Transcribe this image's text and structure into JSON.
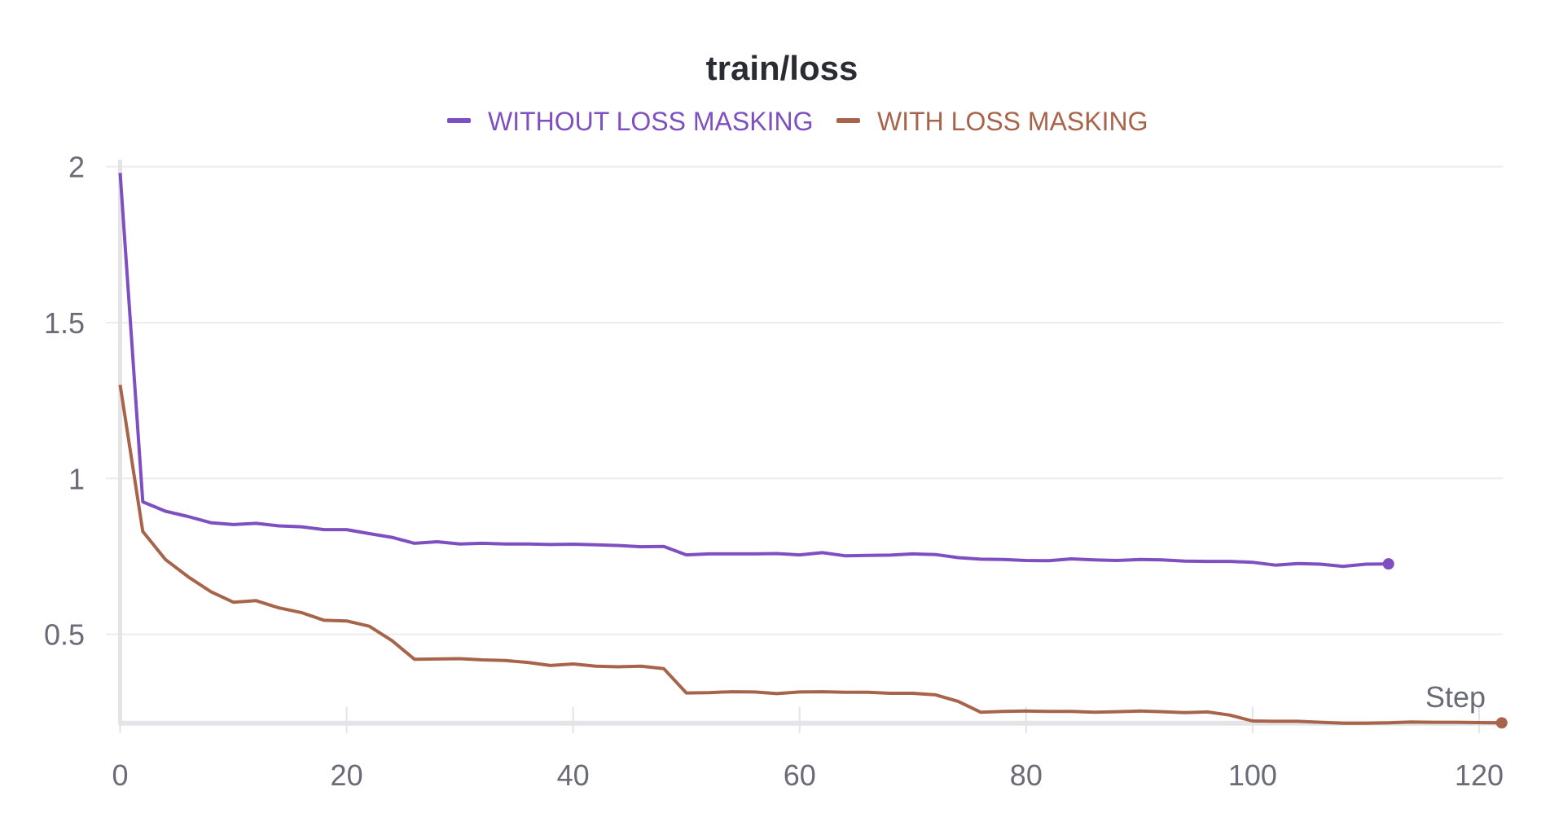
{
  "chart_data": {
    "type": "line",
    "title": "train/loss",
    "xlabel": "Step",
    "ylabel": "",
    "xlim": [
      0,
      122
    ],
    "ylim": [
      0.215,
      2.0
    ],
    "x_ticks": [
      "0",
      "20",
      "40",
      "60",
      "80",
      "100",
      "120"
    ],
    "y_ticks": [
      "0.5",
      "1",
      "1.5",
      "2"
    ],
    "grid": true,
    "legend_position": "top-center",
    "series": [
      {
        "name": "WITHOUT LOSS MASKING",
        "color": "#7e4fc0",
        "x": [
          0,
          2,
          4,
          6,
          8,
          10,
          12,
          14,
          16,
          18,
          20,
          22,
          24,
          26,
          28,
          30,
          32,
          34,
          36,
          38,
          40,
          42,
          44,
          46,
          48,
          50,
          52,
          54,
          56,
          58,
          60,
          62,
          64,
          66,
          68,
          70,
          72,
          74,
          76,
          78,
          80,
          82,
          84,
          86,
          88,
          90,
          92,
          94,
          96,
          98,
          100,
          102,
          104,
          106,
          108,
          110,
          112
        ],
        "y": [
          1.98,
          0.925,
          0.895,
          0.878,
          0.858,
          0.852,
          0.856,
          0.848,
          0.845,
          0.836,
          0.836,
          0.823,
          0.811,
          0.792,
          0.797,
          0.79,
          0.792,
          0.79,
          0.79,
          0.788,
          0.789,
          0.787,
          0.785,
          0.781,
          0.782,
          0.755,
          0.758,
          0.758,
          0.758,
          0.759,
          0.755,
          0.762,
          0.752,
          0.753,
          0.754,
          0.758,
          0.756,
          0.746,
          0.741,
          0.74,
          0.737,
          0.736,
          0.742,
          0.739,
          0.737,
          0.74,
          0.739,
          0.735,
          0.734,
          0.734,
          0.731,
          0.722,
          0.727,
          0.725,
          0.718,
          0.725,
          0.726
        ]
      },
      {
        "name": "WITH LOSS MASKING",
        "color": "#a8644a",
        "x": [
          0,
          2,
          4,
          6,
          8,
          10,
          12,
          14,
          16,
          18,
          20,
          22,
          24,
          26,
          28,
          30,
          32,
          34,
          36,
          38,
          40,
          42,
          44,
          46,
          48,
          50,
          52,
          54,
          56,
          58,
          60,
          62,
          64,
          66,
          68,
          70,
          72,
          74,
          76,
          78,
          80,
          82,
          84,
          86,
          88,
          90,
          92,
          94,
          96,
          98,
          100,
          102,
          104,
          106,
          108,
          110,
          112,
          114,
          116,
          118,
          120,
          122
        ],
        "y": [
          1.3,
          0.83,
          0.74,
          0.685,
          0.637,
          0.603,
          0.608,
          0.585,
          0.57,
          0.545,
          0.543,
          0.526,
          0.48,
          0.42,
          0.421,
          0.422,
          0.418,
          0.416,
          0.41,
          0.4,
          0.405,
          0.398,
          0.396,
          0.398,
          0.39,
          0.312,
          0.313,
          0.316,
          0.315,
          0.31,
          0.315,
          0.316,
          0.314,
          0.314,
          0.311,
          0.311,
          0.306,
          0.285,
          0.25,
          0.253,
          0.254,
          0.253,
          0.253,
          0.25,
          0.252,
          0.254,
          0.252,
          0.249,
          0.251,
          0.241,
          0.222,
          0.221,
          0.221,
          0.218,
          0.215,
          0.215,
          0.216,
          0.219,
          0.218,
          0.218,
          0.217,
          0.216
        ]
      }
    ]
  }
}
